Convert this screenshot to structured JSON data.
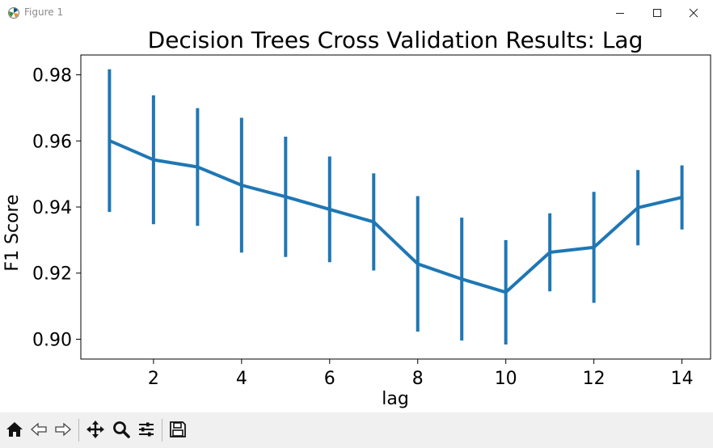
{
  "window": {
    "title": "Figure 1",
    "icons": [
      "matplotlib-icon",
      "minimize-icon",
      "maximize-icon",
      "close-icon"
    ]
  },
  "toolbar": {
    "buttons": [
      "home-icon",
      "back-arrow-icon",
      "forward-arrow-icon",
      "pan-icon",
      "zoom-icon",
      "subplots-icon",
      "save-icon"
    ]
  },
  "colors": {
    "series": "#1f77b4"
  },
  "chart_data": {
    "type": "line",
    "title": "Decision Trees Cross Validation Results: Lag",
    "xlabel": "lag",
    "ylabel": "F1 Score",
    "x": [
      1,
      2,
      3,
      4,
      5,
      6,
      7,
      8,
      9,
      10,
      11,
      12,
      13,
      14
    ],
    "series": [
      {
        "values": [
          0.9601,
          0.9543,
          0.9521,
          0.9466,
          0.9431,
          0.9393,
          0.9355,
          0.9228,
          0.9182,
          0.9142,
          0.9263,
          0.9278,
          0.9398,
          0.9429
        ],
        "error": [
          0.0216,
          0.0195,
          0.0178,
          0.0204,
          0.0182,
          0.016,
          0.0147,
          0.0205,
          0.0186,
          0.0158,
          0.0118,
          0.0168,
          0.0114,
          0.0097
        ]
      }
    ],
    "xlim": [
      0.35,
      14.65
    ],
    "ylim": [
      0.894,
      0.986
    ],
    "xticks": [
      "2",
      "4",
      "6",
      "8",
      "10",
      "12",
      "14"
    ],
    "yticks": [
      "0.90",
      "0.92",
      "0.94",
      "0.96",
      "0.98"
    ],
    "grid": false,
    "legend": "none"
  }
}
